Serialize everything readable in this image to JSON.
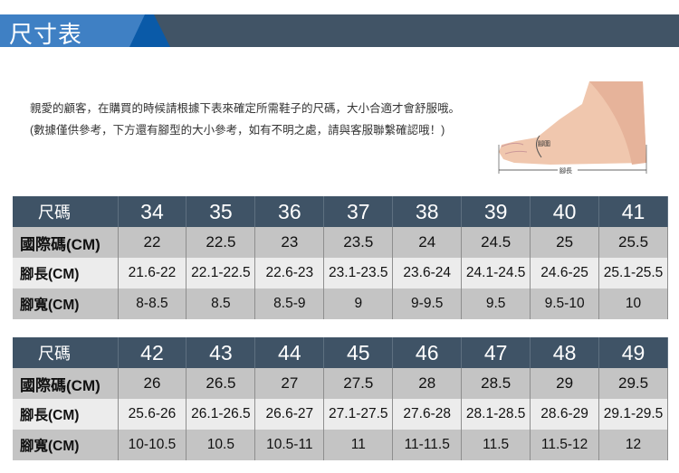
{
  "banner": {
    "title": "尺寸表"
  },
  "intro": {
    "text": "親愛的顧客，在購買的時候請根據下表來確定所需鞋子的尺碼，大小合適才會舒服哦。 (數據僅供參考，下方還有腳型的大小參考，如有不明之處，請與客服聯繫確認哦！)"
  },
  "foot_diagram": {
    "girth_label": "腳圍",
    "length_label": "腳長"
  },
  "tables": [
    {
      "header_label": "尺碼",
      "sizes": [
        "34",
        "35",
        "36",
        "37",
        "38",
        "39",
        "40",
        "41"
      ],
      "rows": [
        {
          "label": "國際碼(CM)",
          "values": [
            "22",
            "22.5",
            "23",
            "23.5",
            "24",
            "24.5",
            "25",
            "25.5"
          ]
        },
        {
          "label": "腳長(CM)",
          "values": [
            "21.6-22",
            "22.1-22.5",
            "22.6-23",
            "23.1-23.5",
            "23.6-24",
            "24.1-24.5",
            "24.6-25",
            "25.1-25.5"
          ]
        },
        {
          "label": "腳寬(CM)",
          "values": [
            "8-8.5",
            "8.5",
            "8.5-9",
            "9",
            "9-9.5",
            "9.5",
            "9.5-10",
            "10"
          ]
        }
      ]
    },
    {
      "header_label": "尺碼",
      "sizes": [
        "42",
        "43",
        "44",
        "45",
        "46",
        "47",
        "48",
        "49"
      ],
      "rows": [
        {
          "label": "國際碼(CM)",
          "values": [
            "26",
            "26.5",
            "27",
            "27.5",
            "28",
            "28.5",
            "29",
            "29.5"
          ]
        },
        {
          "label": "腳長(CM)",
          "values": [
            "25.6-26",
            "26.1-26.5",
            "26.6-27",
            "27.1-27.5",
            "27.6-28",
            "28.1-28.5",
            "28.6-29",
            "29.1-29.5"
          ]
        },
        {
          "label": "腳寬(CM)",
          "values": [
            "10-10.5",
            "10.5",
            "10.5-11",
            "11",
            "11-11.5",
            "11.5",
            "11.5-12",
            "12"
          ]
        }
      ]
    }
  ]
}
